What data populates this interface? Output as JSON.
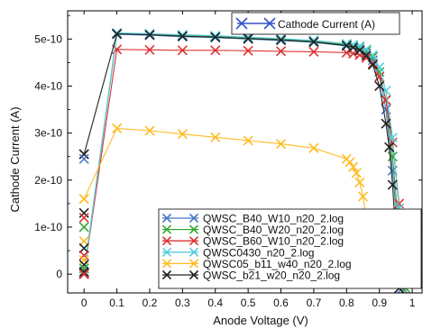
{
  "chart_data": {
    "type": "line",
    "title": "",
    "xlabel": "Anode Voltage (V)",
    "ylabel": "Cathode Current (A)",
    "xlim": [
      -0.05,
      1.03
    ],
    "ylim": [
      -4e-11,
      5.6e-10
    ],
    "grid": false,
    "x_ticks": [
      0,
      0.1,
      0.2,
      0.3,
      0.4,
      0.5,
      0.6,
      0.7,
      0.8,
      0.9,
      1
    ],
    "x_tick_labels": [
      "0",
      "0.1",
      "0.2",
      "0.3",
      "0.4",
      "0.5",
      "0.6",
      "0.7",
      "0.8",
      "0.9",
      "1"
    ],
    "y_ticks": [
      0,
      1e-10,
      2e-10,
      3e-10,
      4e-10,
      5e-10
    ],
    "y_tick_labels": [
      "0",
      "1e-10",
      "2e-10",
      "3e-10",
      "4e-10",
      "5e-10"
    ],
    "top_legend": {
      "label": "Cathode Current (A)",
      "color": "#3355cc",
      "position": "top-right"
    },
    "legend_position": "bottom-right",
    "series": [
      {
        "name": "QWSC_B40_W10_n20_2.log",
        "color": "#4a78c8",
        "points": [
          [
            0,
            3e-12
          ],
          [
            0.1,
            5.1e-10
          ],
          [
            0.2,
            5.08e-10
          ],
          [
            0.3,
            5.05e-10
          ],
          [
            0.4,
            5.03e-10
          ],
          [
            0.5,
            5e-10
          ],
          [
            0.6,
            4.97e-10
          ],
          [
            0.7,
            4.93e-10
          ],
          [
            0.8,
            4.85e-10
          ],
          [
            0.82,
            4.82e-10
          ],
          [
            0.84,
            4.78e-10
          ],
          [
            0.86,
            4.7e-10
          ],
          [
            0.88,
            4.55e-10
          ],
          [
            0.9,
            4.2e-10
          ],
          [
            0.92,
            3.5e-10
          ],
          [
            0.94,
            2.2e-10
          ],
          [
            0.96,
            6e-11
          ],
          [
            0.97,
            -3e-11
          ]
        ]
      },
      {
        "name": "QWSC_B40_W20_n20_2.log",
        "color": "#33aa33",
        "points": [
          [
            0,
            2e-12
          ],
          [
            0.1,
            5.12e-10
          ],
          [
            0.2,
            5.1e-10
          ],
          [
            0.3,
            5.08e-10
          ],
          [
            0.4,
            5.06e-10
          ],
          [
            0.5,
            5.03e-10
          ],
          [
            0.6,
            5e-10
          ],
          [
            0.7,
            4.96e-10
          ],
          [
            0.8,
            4.88e-10
          ],
          [
            0.82,
            4.86e-10
          ],
          [
            0.84,
            4.83e-10
          ],
          [
            0.86,
            4.75e-10
          ],
          [
            0.88,
            4.62e-10
          ],
          [
            0.9,
            4.3e-10
          ],
          [
            0.92,
            3.7e-10
          ],
          [
            0.94,
            2.5e-10
          ],
          [
            0.96,
            9e-11
          ],
          [
            0.98,
            -3e-11
          ]
        ]
      },
      {
        "name": "QWSC_B60_W10_n20_2.log",
        "color": "#dd3333",
        "points": [
          [
            0,
            1e-12
          ],
          [
            0.1,
            4.78e-10
          ],
          [
            0.2,
            4.77e-10
          ],
          [
            0.3,
            4.76e-10
          ],
          [
            0.4,
            4.76e-10
          ],
          [
            0.5,
            4.75e-10
          ],
          [
            0.6,
            4.74e-10
          ],
          [
            0.7,
            4.73e-10
          ],
          [
            0.8,
            4.71e-10
          ],
          [
            0.82,
            4.69e-10
          ],
          [
            0.84,
            4.66e-10
          ],
          [
            0.86,
            4.6e-10
          ],
          [
            0.88,
            4.48e-10
          ],
          [
            0.9,
            4.2e-10
          ],
          [
            0.92,
            3.7e-10
          ],
          [
            0.94,
            2.8e-10
          ],
          [
            0.96,
            1.5e-10
          ],
          [
            0.98,
            -2e-11
          ]
        ]
      },
      {
        "name": "QWSC0430_n20_2.log",
        "color": "#55ccdd",
        "points": [
          [
            0,
            0.0
          ],
          [
            0.1,
            5.13e-10
          ],
          [
            0.2,
            5.11e-10
          ],
          [
            0.3,
            5.09e-10
          ],
          [
            0.4,
            5.07e-10
          ],
          [
            0.5,
            5.04e-10
          ],
          [
            0.6,
            5.01e-10
          ],
          [
            0.7,
            4.97e-10
          ],
          [
            0.8,
            4.9e-10
          ],
          [
            0.82,
            4.88e-10
          ],
          [
            0.84,
            4.85e-10
          ],
          [
            0.86,
            4.78e-10
          ],
          [
            0.88,
            4.66e-10
          ],
          [
            0.9,
            4.4e-10
          ],
          [
            0.92,
            3.9e-10
          ],
          [
            0.94,
            2.9e-10
          ],
          [
            0.96,
            1.4e-10
          ],
          [
            0.98,
            -2e-11
          ]
        ]
      },
      {
        "name": "QWSC05_b11_w40_n20_2.log",
        "color": "#ffbb22",
        "points": [
          [
            0,
            1.6e-10
          ],
          [
            0.1,
            3.1e-10
          ],
          [
            0.2,
            3.05e-10
          ],
          [
            0.3,
            2.98e-10
          ],
          [
            0.4,
            2.91e-10
          ],
          [
            0.5,
            2.84e-10
          ],
          [
            0.6,
            2.77e-10
          ],
          [
            0.7,
            2.68e-10
          ],
          [
            0.8,
            2.45e-10
          ],
          [
            0.81,
            2.38e-10
          ],
          [
            0.82,
            2.28e-10
          ],
          [
            0.83,
            2.15e-10
          ],
          [
            0.84,
            1.95e-10
          ],
          [
            0.85,
            1.65e-10
          ],
          [
            0.86,
            1.2e-10
          ],
          [
            0.87,
            6e-11
          ],
          [
            0.88,
            0.0
          ]
        ]
      },
      {
        "name": "QWSC_b21_w20_n20_2.log",
        "color": "#222222",
        "points": [
          [
            0,
            2.55e-10
          ],
          [
            0.1,
            5.11e-10
          ],
          [
            0.2,
            5.09e-10
          ],
          [
            0.3,
            5.06e-10
          ],
          [
            0.4,
            5.04e-10
          ],
          [
            0.5,
            5.01e-10
          ],
          [
            0.6,
            4.98e-10
          ],
          [
            0.7,
            4.94e-10
          ],
          [
            0.8,
            4.86e-10
          ],
          [
            0.82,
            4.82e-10
          ],
          [
            0.84,
            4.76e-10
          ],
          [
            0.86,
            4.65e-10
          ],
          [
            0.88,
            4.45e-10
          ],
          [
            0.9,
            4e-10
          ],
          [
            0.92,
            3.2e-10
          ],
          [
            0.93,
            2.7e-10
          ],
          [
            0.94,
            1.9e-10
          ],
          [
            0.96,
            -3e-11
          ]
        ]
      }
    ],
    "zero_voltage_stack": [
      2.55e-10,
      2.45e-10,
      1.6e-10,
      1.3e-10,
      1.2e-10,
      1e-10,
      7e-11,
      5.5e-11,
      4e-11,
      3e-11,
      2e-11,
      1.2e-11,
      5e-12,
      0.0
    ]
  }
}
